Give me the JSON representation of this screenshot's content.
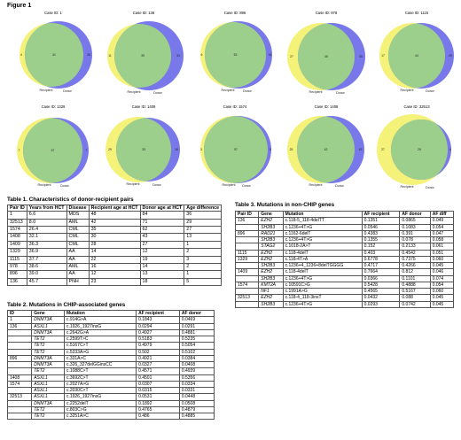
{
  "figure": {
    "title": "Figure 1",
    "panels": [
      {
        "case": "Case ID: 1",
        "left": "4",
        "center": "41",
        "right": "38"
      },
      {
        "case": "Case ID: 136",
        "left": "11",
        "center": "39",
        "right": "33"
      },
      {
        "case": "Case ID: 896",
        "left": "6",
        "center": "53",
        "right": "31"
      },
      {
        "case": "Case ID: 978",
        "left": "27",
        "center": "45",
        "right": "35"
      },
      {
        "case": "Case ID: 1115",
        "left": "17",
        "center": "44",
        "right": "29"
      },
      {
        "case": "Case ID: 1329",
        "left": "7",
        "center": "57",
        "right": "7"
      },
      {
        "case": "Case ID: 1409",
        "left": "29",
        "center": "33",
        "right": "18"
      },
      {
        "case": "Case ID: 1574",
        "left": "3",
        "center": "57",
        "right": "6"
      },
      {
        "case": "Case ID: 1408",
        "left": "25",
        "center": "42",
        "right": "43"
      },
      {
        "case": "Case ID: 32513",
        "left": "27",
        "center": "29",
        "right": "4"
      }
    ],
    "recipient_label": "Recipient",
    "donor_label": "Donor",
    "colors": {
      "recipient": "#f5f27a",
      "donor": "#7878ea",
      "overlap": "#9ccf8c"
    }
  },
  "table1": {
    "title": "Table 1.  Characteristics of donor-recipient pairs",
    "headers": [
      "Pair ID",
      "Years from HCT",
      "Disease",
      "Recipient age at HCT",
      "Donor age at HCT",
      "Age difference"
    ],
    "rows": [
      [
        "1",
        "6.6",
        "MDS",
        "48",
        "84",
        "36"
      ],
      [
        "32513",
        "8.0",
        "AML",
        "42",
        "71",
        "29"
      ],
      [
        "1574",
        "26.4",
        "CML",
        "35",
        "62",
        "27"
      ],
      [
        "1408",
        "32.1",
        "CML",
        "30",
        "43",
        "13"
      ],
      [
        "1409",
        "36.3",
        "CML",
        "28",
        "27",
        "1"
      ],
      [
        "1329",
        "36.9",
        "AA",
        "14",
        "12",
        "2"
      ],
      [
        "1115",
        "37.7",
        "AA",
        "22",
        "19",
        "3"
      ],
      [
        "978",
        "38.6",
        "AML",
        "16",
        "14",
        "2"
      ],
      [
        "896",
        "39.0",
        "AA",
        "12",
        "13",
        "1"
      ],
      [
        "136",
        "45.7",
        "PNH",
        "23",
        "18",
        "5"
      ]
    ]
  },
  "table2": {
    "title": "Table 2. Mutations in CHIP-associated genes",
    "headers": [
      "ID",
      "Gene",
      "Mutation",
      "AF recipient",
      "AF donor"
    ],
    "rows": [
      [
        "1",
        "DNMT3A",
        "c.914G>A",
        "0.1843",
        "0.0469"
      ],
      [
        "136",
        "ASXL1",
        "c.1926_1927insG",
        "0.0294",
        "0.0291"
      ],
      [
        "",
        "DNMT3A",
        "c.2642G>A",
        "0.4927",
        "0.4881"
      ],
      [
        "",
        "TET2",
        "c.2599T>C",
        "0.5183",
        "0.5235"
      ],
      [
        "",
        "TET2",
        "c.5167C>T",
        "0.4979",
        "0.5054"
      ],
      [
        "",
        "TET2",
        "c.5333A>G",
        "0.502",
        "0.5102"
      ],
      [
        "896",
        "DNMT3A",
        "c.331A>C",
        "0.4921",
        "0.0384"
      ],
      [
        "",
        "DNMT3A",
        "c.326_327delGGinsCC",
        "0.0327",
        "0.0408"
      ],
      [
        "",
        "TET2",
        "c.1088C>T",
        "0.4571",
        "0.4939"
      ],
      [
        "1408",
        "ASXL1",
        "c.3692C>T",
        "0.4501",
        "0.5356"
      ],
      [
        "1574",
        "ASXL1",
        "c.2027A>G",
        "0.0307",
        "0.0334"
      ],
      [
        "",
        "ASXL1",
        "c.2030C>T",
        "0.0315",
        "0.0331"
      ],
      [
        "32513",
        "ASXL1",
        "c.1926_1927insG",
        "0.0531",
        "0.0448"
      ],
      [
        "",
        "DNMT3A",
        "c.2252delT",
        "0.1892",
        "0.0508"
      ],
      [
        "",
        "TET2",
        "c.803C>G",
        "0.4765",
        "0.4879"
      ],
      [
        "",
        "TET2",
        "c.3251A>C",
        "0.486",
        "0.4885"
      ]
    ]
  },
  "table3": {
    "title": "Table 3. Mutations in non-CHIP genes",
    "headers": [
      "Pair ID",
      "Gene",
      "Mutation",
      "AF recipient",
      "AF donor",
      "AF diff"
    ],
    "rows": [
      [
        "136",
        "EZH2",
        "c.118-5_118-4delTT",
        "0.1351",
        "0.0865",
        "0.049"
      ],
      [
        "",
        "SH2B3",
        "c.1236+4T>G",
        "0.0546",
        "0.1083",
        "0.054"
      ],
      [
        "896",
        "RAD21",
        "c.1162-6delT",
        "0.4383",
        "0.391",
        "0.047"
      ],
      [
        "",
        "SH2B3",
        "c.1236+4T>G",
        "0.1355",
        "0.078",
        "0.058"
      ],
      [
        "",
        "STAG2",
        "c.1018-2A>T",
        "0.152",
        "0.2133",
        "0.061"
      ],
      [
        "1115",
        "EZH2",
        "c.118-4delT",
        "0.403",
        "0.4542",
        "0.051"
      ],
      [
        "1329",
        "EZH2",
        "c.118-4T>A",
        "0.6778",
        "0.7375",
        "0.060"
      ],
      [
        "",
        "SH2B3",
        "c.1236+4_1236+8delTGGGG",
        "0.4717",
        "0.4266",
        "0.045"
      ],
      [
        "1409",
        "EZH2",
        "c.118-4delT",
        "0.7664",
        "0.812",
        "0.046"
      ],
      [
        "",
        "SH2B3",
        "c.1236+4T>G",
        "0.0366",
        "0.1101",
        "0.074"
      ],
      [
        "1574",
        "KMT2A",
        "c.10591C>G",
        "0.5428",
        "0.4888",
        "0.054"
      ],
      [
        "",
        "NF1",
        "c.1991A>G",
        "0.4565",
        "0.5167",
        "0.060"
      ],
      [
        "32513",
        "EZH2",
        "c.118-4_118-3insT",
        "0.0432",
        "0.088",
        "0.045"
      ],
      [
        "",
        "SH2B3",
        "c.1236+4T>G",
        "0.0293",
        "0.0742",
        "0.045"
      ]
    ]
  }
}
